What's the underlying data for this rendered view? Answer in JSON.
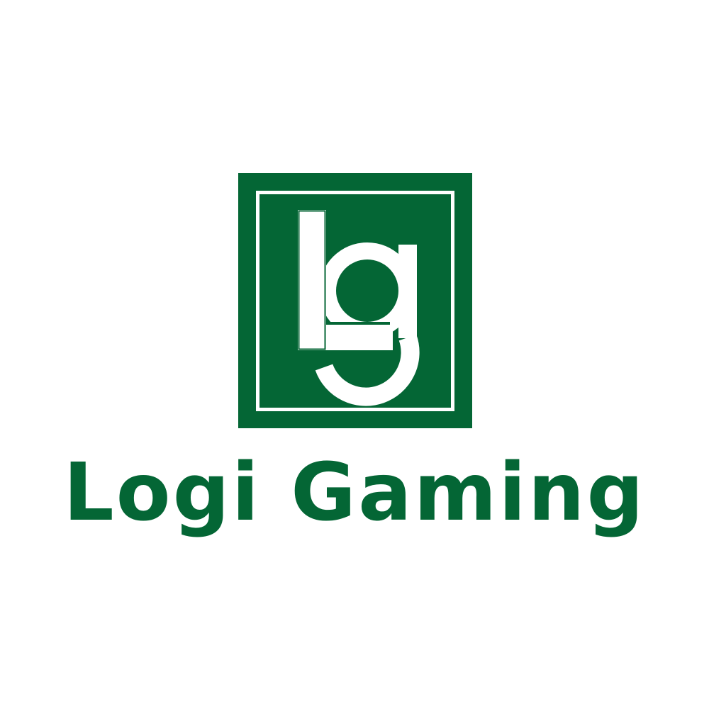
{
  "brand": {
    "name": "Logi Gaming",
    "monogram": "Lg",
    "colors": {
      "primary": "#046635",
      "background": "#ffffff",
      "monogram": "#ffffff"
    }
  }
}
